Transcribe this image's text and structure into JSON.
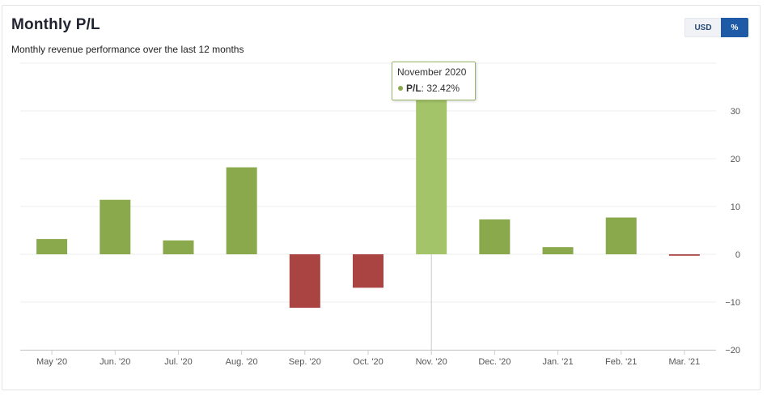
{
  "header": {
    "title": "Monthly P/L",
    "subtitle": "Monthly revenue performance over the last 12 months"
  },
  "toggle": {
    "usd_label": "USD",
    "percent_label": "%",
    "selected": "%"
  },
  "tooltip": {
    "title": "November 2020",
    "series_label": "P/L",
    "value_text": "32.42%"
  },
  "colors": {
    "positive": "#8aa84c",
    "positive_highlight": "#a4c46a",
    "negative": "#a94442",
    "grid": "#eeeeee",
    "crosshair": "#c8c8c8"
  },
  "chart_data": {
    "type": "bar",
    "title": "Monthly P/L",
    "subtitle": "Monthly revenue performance over the last 12 months",
    "xlabel": "",
    "ylabel": "",
    "y_axis_side": "right",
    "ylim": [
      -20,
      40
    ],
    "yticks": [
      -20,
      -10,
      0,
      10,
      20,
      30
    ],
    "grid": true,
    "highlighted_category": "Nov. '20",
    "categories": [
      "May '20",
      "Jun. '20",
      "Jul. '20",
      "Aug. '20",
      "Sep. '20",
      "Oct. '20",
      "Nov. '20",
      "Dec. '20",
      "Jan. '21",
      "Feb. '21",
      "Mar. '21"
    ],
    "series": [
      {
        "name": "P/L",
        "unit": "%",
        "values": [
          3.2,
          11.4,
          2.9,
          18.2,
          -11.2,
          -7.0,
          32.42,
          7.3,
          1.5,
          7.7,
          -0.3
        ]
      }
    ]
  }
}
